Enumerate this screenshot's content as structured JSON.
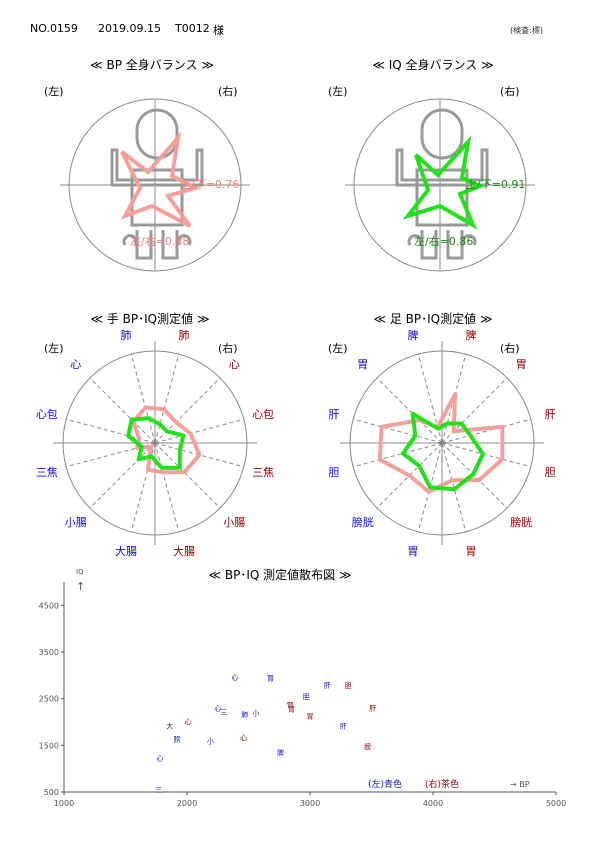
{
  "header": {
    "no": "NO.0159",
    "date": "2019.09.15",
    "id": "T0012",
    "honorific": "様",
    "stamp": "(検査:標)"
  },
  "colors": {
    "bp": "#f4a09a",
    "iq": "#22e01a",
    "left_label": "#1010c0",
    "right_label": "#8b0000",
    "grid": "#888888",
    "bp_text": "#f08080",
    "iq_text": "#1a8a1a"
  },
  "body_balance": {
    "bp": {
      "title": "≪ BP 全身バランス ≫",
      "left": "(左)",
      "right": "(右)",
      "ud_label": "上/下=0.76",
      "lr_label": "左/右=0.88"
    },
    "iq": {
      "title": "≪ IQ 全身バランス ≫",
      "left": "(左)",
      "right": "(右)",
      "ud_label": "上/下=0.91",
      "lr_label": "左/右=0.86"
    }
  },
  "chart_data": [
    {
      "type": "radar",
      "title": "≪ 手 BP･IQ測定値 ≫",
      "left": "(左)",
      "right": "(右)",
      "axes": [
        "肺",
        "心",
        "心包",
        "三焦",
        "小腸",
        "大腸",
        "大腸",
        "小腸",
        "三焦",
        "心包",
        "心",
        "肺"
      ],
      "axis_sides": [
        "L",
        "L",
        "L",
        "L",
        "L",
        "L",
        "R",
        "R",
        "R",
        "R",
        "R",
        "R"
      ],
      "series": [
        {
          "key": "bp",
          "values": [
            0.4,
            0.33,
            0.18,
            0.2,
            0.06,
            0.3,
            0.33,
            0.45,
            0.5,
            0.4,
            0.32,
            0.38
          ]
        },
        {
          "key": "iq",
          "values": [
            0.28,
            0.36,
            0.3,
            0.15,
            0.25,
            0.15,
            0.28,
            0.38,
            0.28,
            0.32,
            0.18,
            0.21
          ]
        }
      ]
    },
    {
      "type": "radar",
      "title": "≪ 足 BP･IQ測定値 ≫",
      "left": "(左)",
      "right": "(右)",
      "axes": [
        "脾",
        "胃",
        "肝",
        "胆",
        "膀胱",
        "胃",
        "胃",
        "膀胱",
        "胆",
        "肝",
        "胃",
        "脾"
      ],
      "axis_sides": [
        "L",
        "L",
        "L",
        "L",
        "L",
        "L",
        "R",
        "R",
        "R",
        "R",
        "R",
        "R"
      ],
      "series": [
        {
          "key": "bp",
          "values": [
            0.18,
            0.35,
            0.68,
            0.7,
            0.5,
            0.55,
            0.42,
            0.57,
            0.68,
            0.68,
            0.18,
            0.55
          ]
        },
        {
          "key": "iq",
          "values": [
            0.16,
            0.45,
            0.3,
            0.44,
            0.35,
            0.5,
            0.52,
            0.48,
            0.46,
            0.32,
            0.3,
            0.22
          ]
        }
      ]
    },
    {
      "type": "scatter",
      "title": "≪ BP･IQ 測定値散布図 ≫",
      "xlabel": "→  BP",
      "ylabel": "IQ",
      "ylabel_arrow": "↑",
      "xlim": [
        1000,
        5000
      ],
      "ylim": [
        500,
        5000
      ],
      "xticks": [
        1000,
        2000,
        3000,
        4000,
        5000
      ],
      "yticks": [
        500,
        1500,
        2500,
        3500,
        4500
      ],
      "legend": {
        "left": "(左)青色",
        "right": "(右)茶色"
      },
      "points": [
        {
          "label": "心",
          "side": "L",
          "x": 2390,
          "y": 2980
        },
        {
          "label": "腎",
          "side": "L",
          "x": 2680,
          "y": 2950
        },
        {
          "label": "肝",
          "side": "L",
          "x": 3140,
          "y": 2800
        },
        {
          "label": "胆",
          "side": "R",
          "x": 3310,
          "y": 2790
        },
        {
          "label": "胆",
          "side": "L",
          "x": 2970,
          "y": 2560
        },
        {
          "label": "心",
          "side": "L",
          "x": 2250,
          "y": 2310
        },
        {
          "label": "三",
          "side": "R",
          "x": 2300,
          "y": 2220
        },
        {
          "label": "肺",
          "side": "L",
          "x": 2470,
          "y": 2170
        },
        {
          "label": "小",
          "side": "R",
          "x": 2560,
          "y": 2200
        },
        {
          "label": "腎",
          "side": "R",
          "x": 2840,
          "y": 2380
        },
        {
          "label": "胃",
          "side": "R",
          "x": 2850,
          "y": 2290
        },
        {
          "label": "肝",
          "side": "R",
          "x": 3510,
          "y": 2310
        },
        {
          "label": "胃",
          "side": "R",
          "x": 3000,
          "y": 2140
        },
        {
          "label": "肝",
          "side": "L",
          "x": 3270,
          "y": 1930
        },
        {
          "label": "心",
          "side": "R",
          "x": 2010,
          "y": 2020
        },
        {
          "label": "大",
          "side": "L",
          "x": 1860,
          "y": 1920
        },
        {
          "label": "膀",
          "side": "L",
          "x": 1920,
          "y": 1650
        },
        {
          "label": "小",
          "side": "L",
          "x": 2190,
          "y": 1600
        },
        {
          "label": "心",
          "side": "R",
          "x": 2460,
          "y": 1680
        },
        {
          "label": "膀",
          "side": "R",
          "x": 3470,
          "y": 1490
        },
        {
          "label": "心",
          "side": "L",
          "x": 1780,
          "y": 1240
        },
        {
          "label": "脾",
          "side": "L",
          "x": 2760,
          "y": 1360
        },
        {
          "label": "三",
          "side": "L",
          "x": 1770,
          "y": 560
        }
      ]
    }
  ]
}
